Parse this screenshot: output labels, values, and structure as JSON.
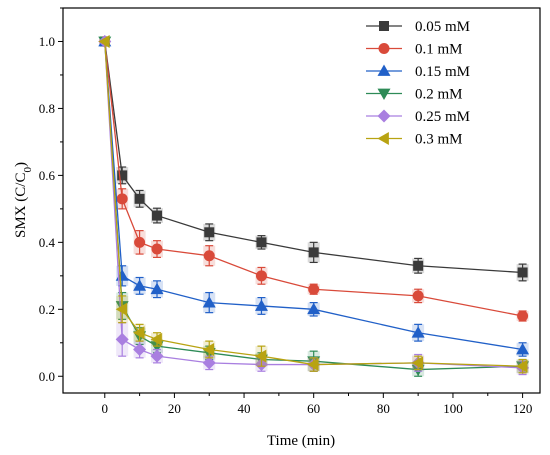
{
  "chart_data": {
    "type": "line",
    "xlabel": "Time (min)",
    "ylabel_main": "SMX (C/C",
    "ylabel_sub": "0",
    "ylabel_close": ")",
    "xlim": [
      -12,
      125
    ],
    "ylim": [
      -0.05,
      1.1
    ],
    "x_ticks": [
      0,
      20,
      40,
      60,
      80,
      100,
      120
    ],
    "y_ticks": [
      0.0,
      0.2,
      0.4,
      0.6,
      0.8,
      1.0
    ],
    "y_tick_labels": [
      "0.0",
      "0.2",
      "0.4",
      "0.6",
      "0.8",
      "1.0"
    ],
    "legend_position": "top-right",
    "x": [
      0,
      5,
      10,
      15,
      30,
      45,
      60,
      90,
      120
    ],
    "series": [
      {
        "name": "0.05 mM",
        "color": "#3a3a3a",
        "marker": "square",
        "values": [
          1.0,
          0.6,
          0.53,
          0.48,
          0.43,
          0.4,
          0.37,
          0.33,
          0.31
        ],
        "errors": [
          0.0,
          0.025,
          0.025,
          0.022,
          0.025,
          0.02,
          0.03,
          0.022,
          0.025
        ]
      },
      {
        "name": "0.1 mM",
        "color": "#d94a3a",
        "marker": "circle",
        "values": [
          1.0,
          0.53,
          0.4,
          0.38,
          0.36,
          0.3,
          0.26,
          0.24,
          0.18
        ],
        "errors": [
          0.0,
          0.03,
          0.035,
          0.025,
          0.03,
          0.025,
          0.015,
          0.02,
          0.015
        ]
      },
      {
        "name": "0.15 mM",
        "color": "#2160c8",
        "marker": "triangle-up",
        "values": [
          1.0,
          0.3,
          0.27,
          0.26,
          0.22,
          0.21,
          0.2,
          0.13,
          0.08
        ],
        "errors": [
          0.0,
          0.03,
          0.025,
          0.025,
          0.03,
          0.025,
          0.02,
          0.025,
          0.02
        ]
      },
      {
        "name": "0.2 mM",
        "color": "#2e8b57",
        "marker": "triangle-down",
        "values": [
          1.0,
          0.21,
          0.12,
          0.09,
          0.07,
          0.05,
          0.045,
          0.02,
          0.03
        ],
        "errors": [
          0.0,
          0.04,
          0.025,
          0.02,
          0.02,
          0.02,
          0.03,
          0.02,
          0.02
        ]
      },
      {
        "name": "0.25 mM",
        "color": "#a97fe0",
        "marker": "diamond",
        "values": [
          1.0,
          0.11,
          0.08,
          0.06,
          0.04,
          0.035,
          0.035,
          0.04,
          0.025
        ],
        "errors": [
          0.0,
          0.05,
          0.025,
          0.02,
          0.02,
          0.02,
          0.02,
          0.025,
          0.02
        ]
      },
      {
        "name": "0.3 mM",
        "color": "#b8a312",
        "marker": "triangle-left",
        "values": [
          1.0,
          0.2,
          0.13,
          0.11,
          0.08,
          0.06,
          0.035,
          0.04,
          0.03
        ],
        "errors": [
          0.0,
          0.04,
          0.025,
          0.02,
          0.025,
          0.03,
          0.02,
          0.02,
          0.02
        ]
      }
    ]
  }
}
